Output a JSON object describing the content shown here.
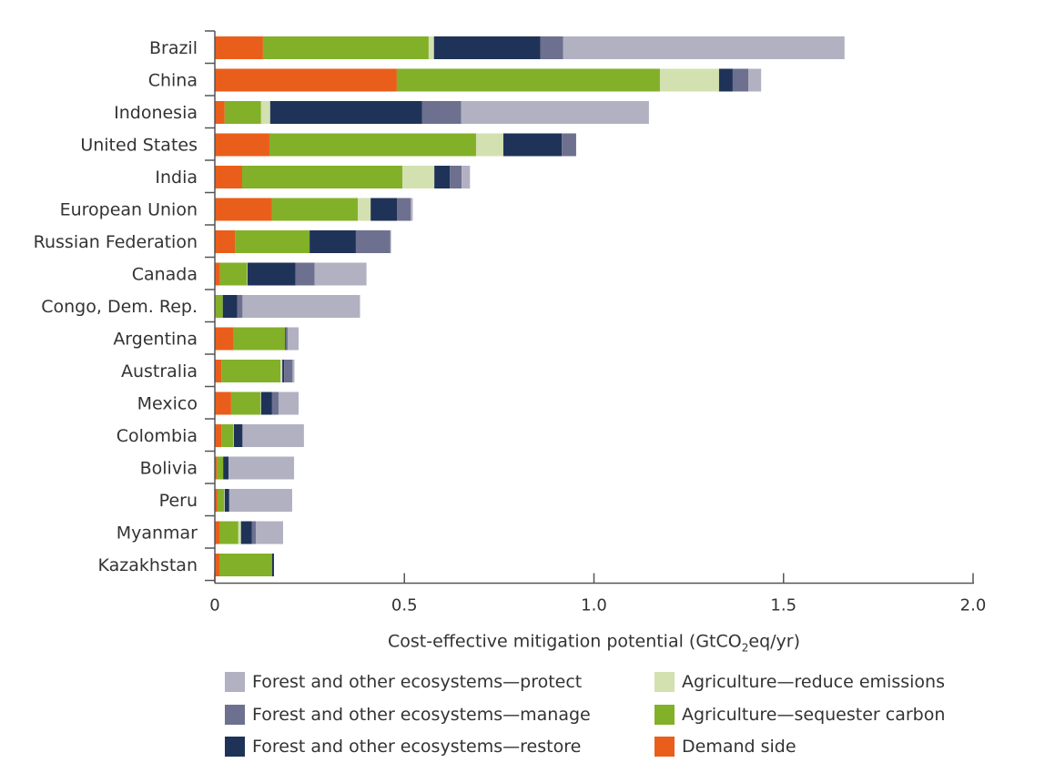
{
  "chart_data": {
    "type": "bar",
    "orientation": "horizontal",
    "stacked": true,
    "title": "",
    "xlabel": "Cost-effective mitigation potential (GtCO2eq/yr)",
    "xlabel_parts": {
      "before": "Cost-effective mitigation potential (GtCO",
      "sub": "2",
      "after": "eq/yr)"
    },
    "ylabel": "",
    "xlim": [
      0,
      2.0
    ],
    "xticks": [
      0,
      0.5,
      1.0,
      1.5,
      2.0
    ],
    "xtick_labels": [
      "0",
      "0.5",
      "1.0",
      "1.5",
      "2.0"
    ],
    "grid": false,
    "legend_position": "bottom",
    "categories": [
      "Brazil",
      "China",
      "Indonesia",
      "United States",
      "India",
      "European Union",
      "Russian Federation",
      "Canada",
      "Congo, Dem. Rep.",
      "Argentina",
      "Australia",
      "Mexico",
      "Colombia",
      "Bolivia",
      "Peru",
      "Myanmar",
      "Kazakhstan"
    ],
    "series": [
      {
        "name": "Demand side",
        "color": "#e95e1b",
        "values": [
          0.127,
          0.48,
          0.026,
          0.144,
          0.072,
          0.151,
          0.053,
          0.014,
          0.0,
          0.048,
          0.017,
          0.043,
          0.017,
          0.005,
          0.007,
          0.012,
          0.012
        ]
      },
      {
        "name": "Agriculture—sequester carbon",
        "color": "#82b029",
        "values": [
          0.437,
          0.694,
          0.096,
          0.545,
          0.423,
          0.226,
          0.197,
          0.07,
          0.021,
          0.137,
          0.156,
          0.077,
          0.031,
          0.017,
          0.017,
          0.05,
          0.139
        ]
      },
      {
        "name": "Agriculture—reduce emissions",
        "color": "#d3e0b0",
        "values": [
          0.014,
          0.156,
          0.024,
          0.072,
          0.084,
          0.034,
          0.0,
          0.002,
          0.0,
          0.0,
          0.005,
          0.002,
          0.002,
          0.0,
          0.002,
          0.007,
          0.0
        ]
      },
      {
        "name": "Forest and other ecosystems—restore",
        "color": "#1f3358",
        "values": [
          0.281,
          0.036,
          0.401,
          0.154,
          0.041,
          0.07,
          0.122,
          0.127,
          0.038,
          0.002,
          0.005,
          0.029,
          0.022,
          0.014,
          0.012,
          0.029,
          0.005
        ]
      },
      {
        "name": "Forest and other ecosystems—manage",
        "color": "#6d708e",
        "values": [
          0.06,
          0.041,
          0.103,
          0.038,
          0.031,
          0.036,
          0.091,
          0.05,
          0.014,
          0.005,
          0.022,
          0.017,
          0.002,
          0.0,
          0.0,
          0.01,
          0.0
        ]
      },
      {
        "name": "Forest and other ecosystems—protect",
        "color": "#b2b1c2",
        "values": [
          0.742,
          0.034,
          0.495,
          0.0,
          0.022,
          0.005,
          0.002,
          0.137,
          0.31,
          0.029,
          0.005,
          0.053,
          0.161,
          0.173,
          0.166,
          0.072,
          0.0
        ]
      }
    ],
    "legend": [
      {
        "name": "Forest and other ecosystems—protect",
        "color": "#b2b1c2"
      },
      {
        "name": "Agriculture—reduce emissions",
        "color": "#d3e0b0"
      },
      {
        "name": "Forest and other ecosystems—manage",
        "color": "#6d708e"
      },
      {
        "name": "Agriculture—sequester carbon",
        "color": "#82b029"
      },
      {
        "name": "Forest and other ecosystems—restore",
        "color": "#1f3358"
      },
      {
        "name": "Demand side",
        "color": "#e95e1b"
      }
    ]
  }
}
